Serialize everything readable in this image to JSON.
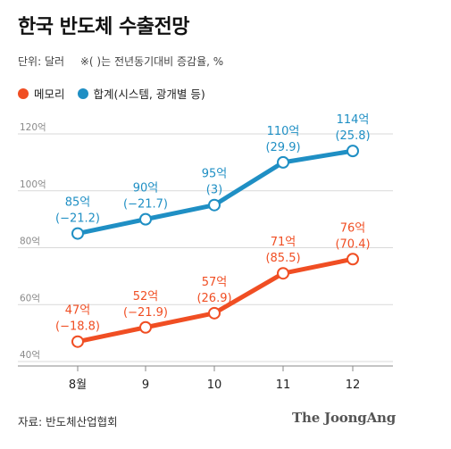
{
  "title": "한국 반도체 수출전망",
  "subtitle_unit": "단위: 달러",
  "subtitle_note": "※( )는 전년동기대비 증감율, %",
  "source": "자료: 반도체산업협회",
  "brand": "The JoongAng",
  "chart_data": {
    "type": "line",
    "categories": [
      "8월",
      "9",
      "10",
      "11",
      "12"
    ],
    "ylim": [
      40,
      120
    ],
    "yticks": [
      "40억",
      "60억",
      "80억",
      "100억",
      "120억"
    ],
    "ytick_values": [
      40,
      60,
      80,
      100,
      120
    ],
    "grid": true,
    "legend_position": "top-left",
    "series": [
      {
        "name": "메모리",
        "color": "#f04e23",
        "values": [
          47,
          52,
          57,
          71,
          76
        ],
        "value_labels": [
          "47억",
          "52억",
          "57억",
          "71억",
          "76억"
        ],
        "change_labels": [
          "(−18.8)",
          "(−21.9)",
          "(26.9)",
          "(85.5)",
          "(70.4)"
        ]
      },
      {
        "name": "합계(시스템, 광개별 등)",
        "color": "#1f8fc4",
        "values": [
          85,
          90,
          95,
          110,
          114
        ],
        "value_labels": [
          "85억",
          "90억",
          "95억",
          "110억",
          "114억"
        ],
        "change_labels": [
          "(−21.2)",
          "(−21.7)",
          "(3)",
          "(29.9)",
          "(25.8)"
        ]
      }
    ]
  }
}
